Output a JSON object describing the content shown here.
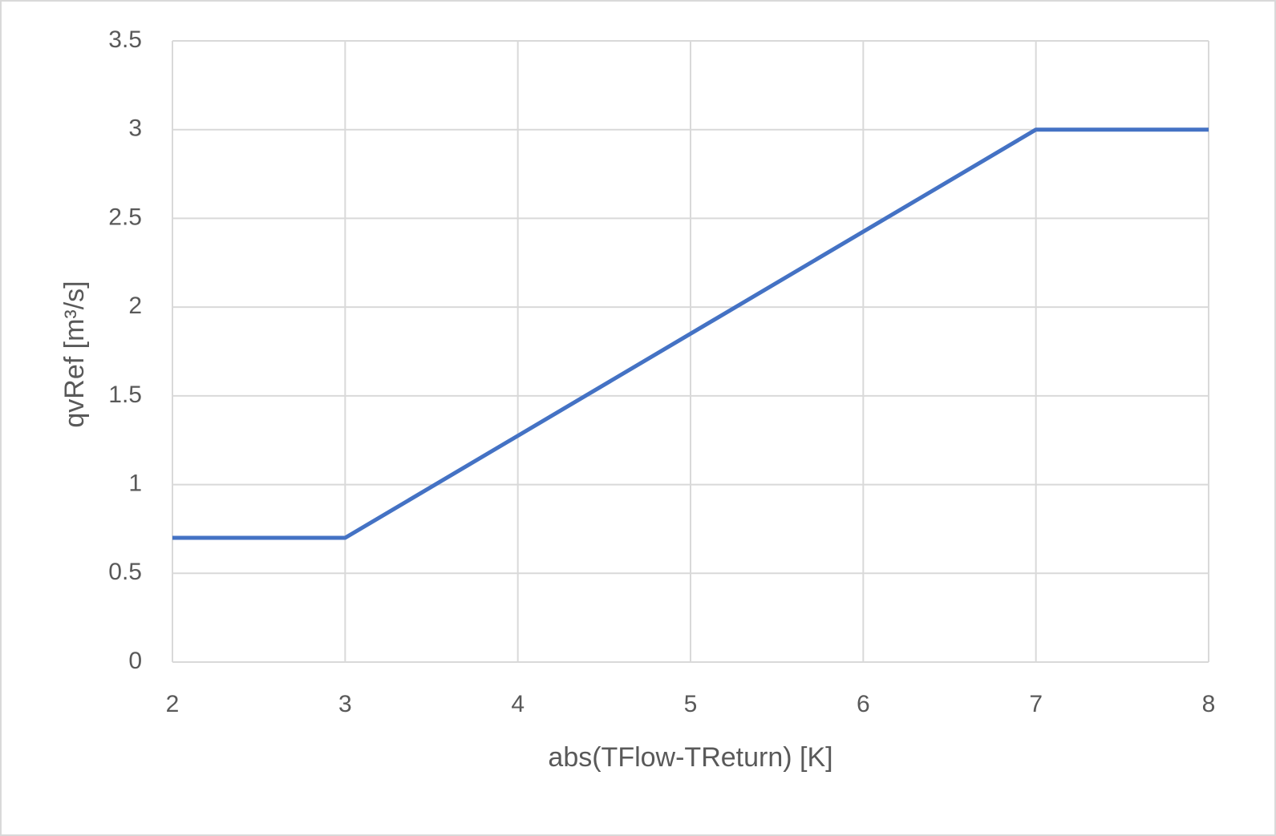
{
  "chart_data": {
    "type": "line",
    "x_label": "abs(TFlow-TReturn) [K]",
    "y_label": "qvRef [m³/s]",
    "x": [
      2,
      3,
      7,
      8
    ],
    "values": [
      0.7,
      0.7,
      3,
      3
    ],
    "color": "#4472c4",
    "xlim": [
      2,
      8
    ],
    "xticks": [
      2,
      3,
      4,
      5,
      6,
      7,
      8
    ],
    "ylim": [
      0,
      3.5
    ],
    "yticks": [
      0,
      0.5,
      1,
      1.5,
      2,
      2.5,
      3,
      3.5
    ],
    "grid": true
  }
}
